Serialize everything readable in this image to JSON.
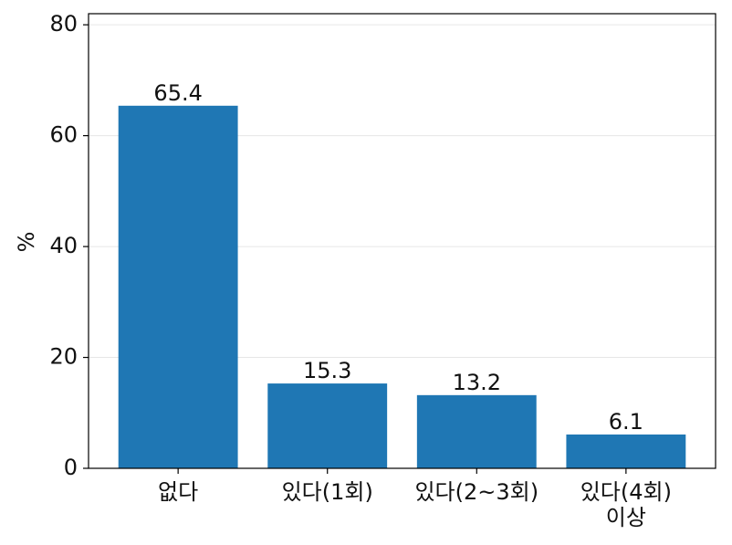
{
  "chart_data": {
    "type": "bar",
    "ylabel": "%",
    "categories": [
      "없다",
      "있다(1회)",
      "있다(2~3회)",
      "있다(4회)\n이상"
    ],
    "values": [
      65.4,
      15.3,
      13.2,
      6.1
    ],
    "color": "#1f77b4",
    "ylim": [
      0,
      82
    ],
    "yticks": [
      0,
      20,
      40,
      60,
      80
    ],
    "grid": true
  }
}
